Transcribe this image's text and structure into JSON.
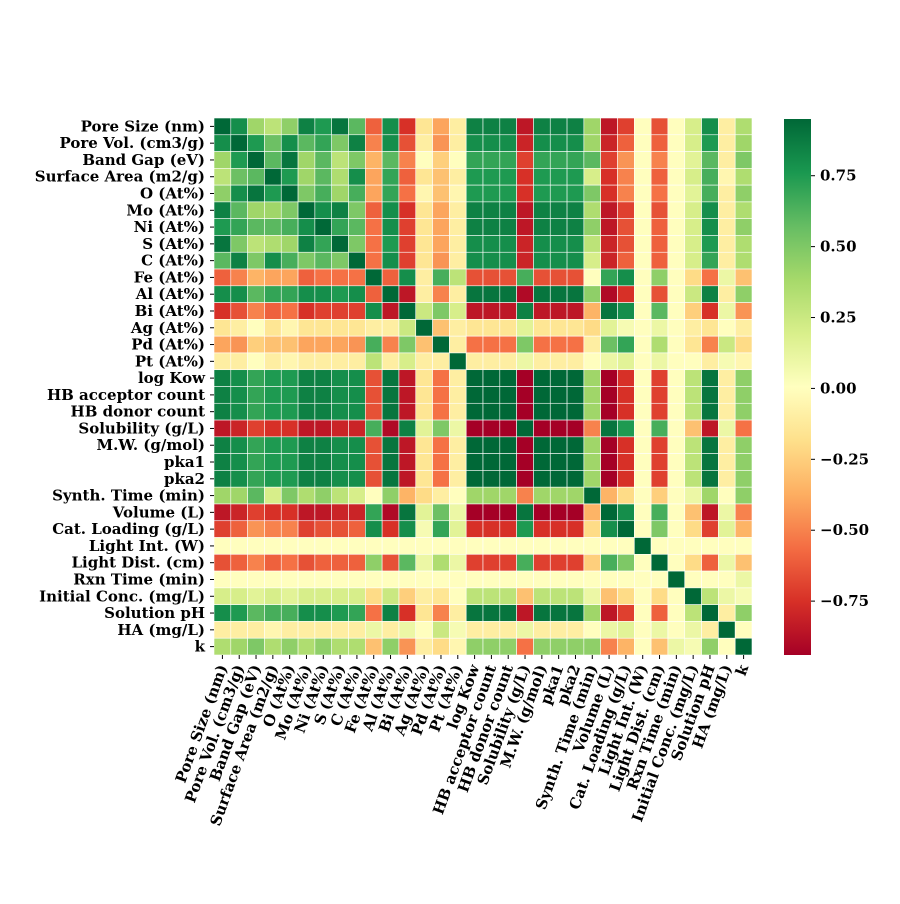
{
  "chart_data": {
    "type": "heatmap",
    "labels": [
      "Pore Size (nm)",
      "Pore Vol. (cm3/g)",
      "Band Gap (eV)",
      "Surface Area (m2/g)",
      "O (At%)",
      "Mo (At%)",
      "Ni (At%)",
      "S (At%)",
      "C (At%)",
      "Fe (At%)",
      "Al (At%)",
      "Bi (At%)",
      "Ag (At%)",
      "Pd (At%)",
      "Pt (At%)",
      "log Kow",
      "HB acceptor count",
      "HB donor count",
      "Solubility (g/L)",
      "M.W. (g/mol)",
      "pka1",
      "pka2",
      "Synth. Time (min)",
      "Volume (L)",
      "Cat. Loading (g/L)",
      "Light Int. (W)",
      "Light Dist. (cm)",
      "Rxn Time (min)",
      "Initial Conc. (mg/L)",
      "Solution pH",
      "HA (mg/L)",
      "k"
    ],
    "values": [
      [
        1,
        0.8,
        0.4,
        0.3,
        0.45,
        0.85,
        0.75,
        0.9,
        0.6,
        -0.6,
        0.8,
        -0.75,
        -0.15,
        -0.4,
        -0.1,
        0.85,
        0.85,
        0.85,
        -0.85,
        0.85,
        0.85,
        0.85,
        0.4,
        -0.85,
        -0.7,
        0,
        -0.65,
        0,
        0.2,
        0.8,
        -0.1,
        0.35
      ],
      [
        0.8,
        1,
        0.75,
        0.55,
        0.8,
        0.6,
        0.7,
        0.5,
        0.85,
        -0.5,
        0.8,
        -0.65,
        -0.1,
        -0.45,
        -0.1,
        0.8,
        0.8,
        0.8,
        -0.8,
        0.8,
        0.8,
        0.8,
        0.4,
        -0.8,
        -0.6,
        0,
        -0.6,
        0,
        0.2,
        0.75,
        -0.1,
        0.4
      ],
      [
        0.4,
        0.75,
        1,
        0.6,
        0.9,
        0.4,
        0.6,
        0.3,
        0.5,
        -0.35,
        0.6,
        -0.5,
        0,
        -0.25,
        0,
        0.7,
        0.7,
        0.7,
        -0.7,
        0.7,
        0.7,
        0.7,
        0.6,
        -0.7,
        -0.45,
        0,
        -0.5,
        0,
        0.15,
        0.6,
        -0.1,
        0.5
      ],
      [
        0.3,
        0.55,
        0.6,
        1,
        0.75,
        0.4,
        0.6,
        0.35,
        0.8,
        -0.4,
        0.7,
        -0.6,
        -0.15,
        -0.3,
        -0.1,
        0.75,
        0.75,
        0.75,
        -0.75,
        0.75,
        0.75,
        0.75,
        0.2,
        -0.75,
        -0.5,
        0,
        -0.6,
        0,
        0.2,
        0.65,
        -0.05,
        0.35
      ],
      [
        0.45,
        0.8,
        0.9,
        0.75,
        1,
        0.5,
        0.65,
        0.4,
        0.65,
        -0.4,
        0.7,
        -0.55,
        -0.05,
        -0.3,
        -0.05,
        0.75,
        0.75,
        0.75,
        -0.75,
        0.75,
        0.75,
        0.75,
        0.5,
        -0.75,
        -0.5,
        0,
        -0.55,
        0,
        0.15,
        0.65,
        -0.1,
        0.45
      ],
      [
        0.85,
        0.6,
        0.4,
        0.4,
        0.5,
        1,
        0.8,
        0.85,
        0.5,
        -0.6,
        0.8,
        -0.75,
        -0.15,
        -0.4,
        -0.1,
        0.85,
        0.85,
        0.85,
        -0.85,
        0.85,
        0.85,
        0.85,
        0.35,
        -0.85,
        -0.7,
        0,
        -0.65,
        0,
        0.2,
        0.8,
        -0.1,
        0.35
      ],
      [
        0.75,
        0.7,
        0.6,
        0.6,
        0.65,
        0.8,
        1,
        0.7,
        0.6,
        -0.55,
        0.8,
        -0.7,
        -0.15,
        -0.4,
        -0.1,
        0.85,
        0.85,
        0.85,
        -0.85,
        0.85,
        0.85,
        0.85,
        0.45,
        -0.85,
        -0.65,
        0,
        -0.6,
        0,
        0.2,
        0.8,
        -0.1,
        0.45
      ],
      [
        0.9,
        0.5,
        0.3,
        0.35,
        0.4,
        0.85,
        0.7,
        1,
        0.5,
        -0.55,
        0.75,
        -0.7,
        -0.15,
        -0.4,
        -0.1,
        0.8,
        0.8,
        0.8,
        -0.8,
        0.8,
        0.8,
        0.8,
        0.3,
        -0.8,
        -0.65,
        0,
        -0.6,
        0,
        0.2,
        0.75,
        -0.1,
        0.35
      ],
      [
        0.6,
        0.85,
        0.5,
        0.8,
        0.65,
        0.5,
        0.6,
        0.5,
        1,
        -0.55,
        0.8,
        -0.7,
        -0.15,
        -0.45,
        -0.1,
        0.8,
        0.8,
        0.8,
        -0.8,
        0.8,
        0.8,
        0.8,
        0.2,
        -0.8,
        -0.6,
        0,
        -0.6,
        0,
        0.2,
        0.7,
        -0.1,
        0.35
      ],
      [
        -0.6,
        -0.5,
        -0.35,
        -0.4,
        -0.4,
        -0.6,
        -0.55,
        -0.55,
        -0.55,
        1,
        -0.6,
        0.8,
        -0.1,
        0.65,
        0.3,
        -0.65,
        -0.65,
        -0.65,
        0.65,
        -0.65,
        -0.65,
        -0.65,
        0,
        0.7,
        0.8,
        0,
        0.45,
        0,
        -0.2,
        -0.55,
        0.1,
        -0.3
      ],
      [
        0.8,
        0.8,
        0.6,
        0.7,
        0.7,
        0.8,
        0.8,
        0.75,
        0.8,
        -0.6,
        1,
        -0.85,
        -0.1,
        -0.5,
        -0.1,
        0.9,
        0.9,
        0.9,
        -0.9,
        0.9,
        0.9,
        0.9,
        0.45,
        -0.9,
        -0.75,
        0,
        -0.65,
        0,
        0.25,
        0.85,
        -0.1,
        0.45
      ],
      [
        -0.75,
        -0.65,
        -0.5,
        -0.6,
        -0.55,
        -0.75,
        -0.7,
        -0.7,
        -0.7,
        0.8,
        -0.85,
        1,
        0.25,
        0.5,
        0.2,
        -0.85,
        -0.85,
        -0.85,
        0.85,
        -0.85,
        -0.85,
        -0.85,
        -0.35,
        0.9,
        0.8,
        0,
        0.6,
        0,
        -0.25,
        -0.75,
        0.1,
        -0.45
      ],
      [
        -0.15,
        -0.1,
        0,
        -0.15,
        -0.05,
        -0.15,
        -0.15,
        -0.15,
        -0.15,
        -0.1,
        -0.1,
        0.25,
        1,
        -0.3,
        -0.1,
        -0.15,
        -0.15,
        -0.15,
        0.15,
        -0.15,
        -0.15,
        -0.15,
        -0.2,
        0.15,
        0.05,
        0,
        0.1,
        0,
        -0.1,
        -0.15,
        0,
        -0.1
      ],
      [
        -0.4,
        -0.45,
        -0.25,
        -0.3,
        -0.3,
        -0.4,
        -0.4,
        -0.4,
        -0.45,
        0.65,
        -0.5,
        0.5,
        -0.3,
        1,
        -0.1,
        -0.55,
        -0.55,
        -0.55,
        0.5,
        -0.55,
        -0.55,
        -0.55,
        -0.1,
        0.55,
        0.7,
        0,
        0.35,
        0,
        -0.15,
        -0.5,
        0.25,
        -0.2
      ],
      [
        -0.1,
        -0.1,
        0,
        -0.1,
        -0.05,
        -0.1,
        -0.1,
        -0.1,
        -0.1,
        0.3,
        -0.1,
        0.2,
        -0.1,
        -0.1,
        1,
        -0.1,
        -0.1,
        -0.1,
        0.1,
        -0.1,
        -0.1,
        -0.1,
        0,
        0.1,
        0.15,
        0,
        0.1,
        0,
        0,
        -0.1,
        0.05,
        -0.05
      ],
      [
        0.85,
        0.8,
        0.7,
        0.75,
        0.75,
        0.85,
        0.85,
        0.8,
        0.8,
        -0.65,
        0.9,
        -0.85,
        -0.15,
        -0.55,
        -0.1,
        1,
        0.95,
        0.95,
        -0.95,
        0.95,
        0.95,
        0.95,
        0.4,
        -0.95,
        -0.75,
        0,
        -0.7,
        0,
        0.3,
        0.9,
        -0.1,
        0.45
      ],
      [
        0.85,
        0.8,
        0.7,
        0.75,
        0.75,
        0.85,
        0.85,
        0.8,
        0.8,
        -0.65,
        0.9,
        -0.85,
        -0.15,
        -0.55,
        -0.1,
        0.95,
        1,
        0.95,
        -0.95,
        0.95,
        0.95,
        0.95,
        0.4,
        -0.95,
        -0.75,
        0,
        -0.7,
        0,
        0.3,
        0.9,
        -0.1,
        0.45
      ],
      [
        0.85,
        0.8,
        0.7,
        0.75,
        0.75,
        0.85,
        0.85,
        0.8,
        0.8,
        -0.65,
        0.9,
        -0.85,
        -0.15,
        -0.55,
        -0.1,
        0.95,
        0.95,
        1,
        -0.95,
        0.95,
        0.95,
        0.95,
        0.4,
        -0.95,
        -0.75,
        0,
        -0.7,
        0,
        0.3,
        0.9,
        -0.1,
        0.45
      ],
      [
        -0.85,
        -0.8,
        -0.7,
        -0.75,
        -0.75,
        -0.85,
        -0.85,
        -0.8,
        -0.8,
        0.65,
        -0.9,
        0.85,
        0.15,
        0.5,
        0.1,
        -0.95,
        -0.95,
        -0.95,
        1,
        -0.95,
        -0.95,
        -0.95,
        -0.5,
        0.9,
        0.75,
        0,
        0.65,
        0,
        -0.3,
        -0.85,
        0.1,
        -0.55
      ],
      [
        0.85,
        0.8,
        0.7,
        0.75,
        0.75,
        0.85,
        0.85,
        0.8,
        0.8,
        -0.65,
        0.9,
        -0.85,
        -0.15,
        -0.55,
        -0.1,
        0.95,
        0.95,
        0.95,
        -0.95,
        1,
        0.95,
        0.95,
        0.4,
        -0.95,
        -0.75,
        0,
        -0.7,
        0,
        0.3,
        0.9,
        -0.1,
        0.45
      ],
      [
        0.85,
        0.8,
        0.7,
        0.75,
        0.75,
        0.85,
        0.85,
        0.8,
        0.8,
        -0.65,
        0.9,
        -0.85,
        -0.15,
        -0.55,
        -0.1,
        0.95,
        0.95,
        0.95,
        -0.95,
        0.95,
        1,
        0.95,
        0.4,
        -0.95,
        -0.75,
        0,
        -0.7,
        0,
        0.3,
        0.9,
        -0.1,
        0.45
      ],
      [
        0.85,
        0.8,
        0.7,
        0.75,
        0.75,
        0.85,
        0.85,
        0.8,
        0.8,
        -0.65,
        0.9,
        -0.85,
        -0.15,
        -0.55,
        -0.1,
        0.95,
        0.95,
        0.95,
        -0.95,
        0.95,
        0.95,
        1,
        0.4,
        -0.95,
        -0.75,
        0,
        -0.7,
        0,
        0.3,
        0.9,
        -0.1,
        0.45
      ],
      [
        0.4,
        0.4,
        0.6,
        0.2,
        0.5,
        0.35,
        0.45,
        0.3,
        0.2,
        0,
        0.45,
        -0.35,
        -0.2,
        -0.1,
        0,
        0.4,
        0.4,
        0.4,
        -0.5,
        0.4,
        0.4,
        0.4,
        1,
        -0.35,
        -0.2,
        0,
        -0.25,
        0,
        0.1,
        0.4,
        0,
        0.45
      ],
      [
        -0.85,
        -0.8,
        -0.7,
        -0.75,
        -0.75,
        -0.85,
        -0.85,
        -0.8,
        -0.8,
        0.7,
        -0.9,
        0.9,
        0.15,
        0.55,
        0.1,
        -0.95,
        -0.95,
        -0.95,
        0.9,
        -0.95,
        -0.95,
        -0.95,
        -0.35,
        1,
        0.8,
        0,
        0.65,
        0,
        -0.3,
        -0.85,
        0.1,
        -0.5
      ],
      [
        -0.7,
        -0.6,
        -0.45,
        -0.5,
        -0.5,
        -0.7,
        -0.65,
        -0.65,
        -0.6,
        0.8,
        -0.75,
        0.8,
        0.05,
        0.7,
        0.15,
        -0.75,
        -0.75,
        -0.75,
        0.75,
        -0.75,
        -0.75,
        -0.75,
        -0.2,
        0.8,
        1,
        0,
        0.5,
        0,
        -0.2,
        -0.7,
        0.15,
        -0.35
      ],
      [
        0,
        0,
        0,
        0,
        0,
        0,
        0,
        0,
        0,
        0,
        0,
        0,
        0,
        0,
        0,
        0,
        0,
        0,
        0,
        0,
        0,
        0,
        0,
        0,
        0,
        1,
        0,
        0,
        0,
        0,
        0,
        0
      ],
      [
        -0.65,
        -0.6,
        -0.5,
        -0.6,
        -0.55,
        -0.65,
        -0.6,
        -0.6,
        -0.6,
        0.45,
        -0.65,
        0.6,
        0.1,
        0.35,
        0.1,
        -0.7,
        -0.7,
        -0.7,
        0.65,
        -0.7,
        -0.7,
        -0.7,
        -0.25,
        0.65,
        0.5,
        0,
        1,
        0,
        -0.2,
        -0.6,
        0.1,
        -0.3
      ],
      [
        0,
        0,
        0,
        0,
        0,
        0,
        0,
        0,
        0,
        0,
        0,
        0,
        0,
        0,
        0,
        0,
        0,
        0,
        0,
        0,
        0,
        0,
        0,
        0,
        0,
        0,
        0,
        1,
        0,
        0,
        0,
        0.1
      ],
      [
        0.2,
        0.2,
        0.15,
        0.2,
        0.15,
        0.2,
        0.2,
        0.2,
        0.2,
        -0.2,
        0.25,
        -0.25,
        -0.1,
        -0.15,
        0,
        0.3,
        0.3,
        0.3,
        -0.3,
        0.3,
        0.3,
        0.3,
        0.1,
        -0.3,
        -0.2,
        0,
        -0.2,
        0,
        1,
        0.3,
        0.1,
        0.05
      ],
      [
        0.8,
        0.75,
        0.6,
        0.65,
        0.65,
        0.8,
        0.8,
        0.75,
        0.7,
        -0.55,
        0.85,
        -0.75,
        -0.15,
        -0.5,
        -0.1,
        0.9,
        0.9,
        0.9,
        -0.85,
        0.9,
        0.9,
        0.9,
        0.4,
        -0.85,
        -0.7,
        0,
        -0.6,
        0,
        0.3,
        1,
        -0.1,
        0.45
      ],
      [
        -0.1,
        -0.1,
        -0.1,
        -0.05,
        -0.1,
        -0.1,
        -0.1,
        -0.1,
        -0.1,
        0.1,
        -0.1,
        0.1,
        0,
        0.25,
        0.05,
        -0.1,
        -0.1,
        -0.1,
        0.1,
        -0.1,
        -0.1,
        -0.1,
        0,
        0.1,
        0.15,
        0,
        0.1,
        0,
        0.1,
        -0.1,
        1,
        0
      ],
      [
        0.35,
        0.4,
        0.5,
        0.35,
        0.45,
        0.35,
        0.45,
        0.35,
        0.35,
        -0.3,
        0.45,
        -0.45,
        -0.1,
        -0.2,
        -0.05,
        0.45,
        0.45,
        0.45,
        -0.55,
        0.45,
        0.45,
        0.45,
        0.45,
        -0.5,
        -0.35,
        0,
        -0.3,
        0.1,
        0.05,
        0.45,
        0,
        1
      ]
    ],
    "colormap": [
      "#a50026",
      "#d73027",
      "#f46d43",
      "#fdae61",
      "#fee08b",
      "#ffffbf",
      "#d9ef8b",
      "#a6d96a",
      "#66bd63",
      "#1a9850",
      "#006837"
    ],
    "clim": [
      -0.94,
      0.95
    ],
    "colorbar_ticks": [
      {
        "value": -0.75,
        "label": "−0.75"
      },
      {
        "value": -0.5,
        "label": "−0.50"
      },
      {
        "value": -0.25,
        "label": "−0.25"
      },
      {
        "value": 0,
        "label": "0.00"
      },
      0.25,
      {
        "value": 0.5,
        "label": "0.50"
      },
      0.75
    ]
  }
}
